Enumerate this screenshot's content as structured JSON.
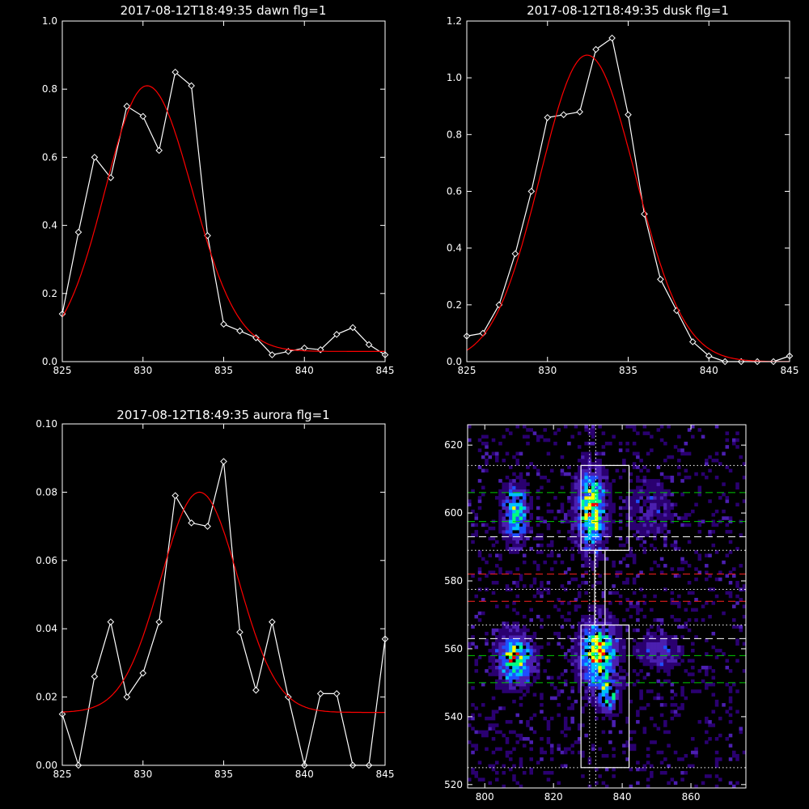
{
  "chart_data": [
    {
      "type": "line",
      "title": "2017-08-12T18:49:35 dawn flg=1",
      "xlim": [
        825,
        845
      ],
      "ylim": [
        0,
        1.0
      ],
      "xticks": [
        825,
        830,
        835,
        840,
        845
      ],
      "xtick_labels": [
        "825",
        "830",
        "835",
        "840",
        "845"
      ],
      "yticks": [
        0,
        0.2,
        0.4,
        0.6,
        0.8,
        1.0
      ],
      "ytick_labels": [
        "0.0",
        "0.2",
        "0.4",
        "0.6",
        "0.8",
        "1.0"
      ],
      "series": [
        {
          "style": "data",
          "color": "#ffffff",
          "marker": "diamond",
          "x": [
            825,
            826,
            827,
            828,
            829,
            830,
            831,
            832,
            833,
            834,
            835,
            836,
            837,
            838,
            839,
            840,
            841,
            842,
            843,
            844,
            845
          ],
          "y": [
            0.14,
            0.38,
            0.6,
            0.54,
            0.75,
            0.72,
            0.62,
            0.85,
            0.81,
            0.37,
            0.11,
            0.09,
            0.07,
            0.02,
            0.03,
            0.04,
            0.035,
            0.08,
            0.1,
            0.05,
            0.02
          ]
        },
        {
          "style": "fit",
          "color": "#ff0000",
          "fit": {
            "amplitude": 0.78,
            "center": 830.25,
            "sigma_left": 2.6,
            "sigma_right": 2.8,
            "baseline": 0.03
          }
        }
      ]
    },
    {
      "type": "line",
      "title": "2017-08-12T18:49:35 dusk flg=1",
      "xlim": [
        825,
        845
      ],
      "ylim": [
        0,
        1.2
      ],
      "xticks": [
        825,
        830,
        835,
        840,
        845
      ],
      "xtick_labels": [
        "825",
        "830",
        "835",
        "840",
        "845"
      ],
      "yticks": [
        0,
        0.2,
        0.4,
        0.6,
        0.8,
        1.0,
        1.2
      ],
      "ytick_labels": [
        "0.0",
        "0.2",
        "0.4",
        "0.6",
        "0.8",
        "1.0",
        "1.2"
      ],
      "series": [
        {
          "style": "data",
          "color": "#ffffff",
          "marker": "diamond",
          "x": [
            825,
            826,
            827,
            828,
            829,
            830,
            831,
            832,
            833,
            834,
            835,
            836,
            837,
            838,
            839,
            840,
            841,
            842,
            843,
            844,
            845
          ],
          "y": [
            0.09,
            0.1,
            0.2,
            0.38,
            0.6,
            0.86,
            0.87,
            0.88,
            1.1,
            1.14,
            0.87,
            0.52,
            0.29,
            0.18,
            0.07,
            0.02,
            0.0,
            0.0,
            0.0,
            0.0,
            0.02
          ]
        },
        {
          "style": "fit",
          "color": "#ff0000",
          "fit": {
            "amplitude": 1.08,
            "center": 832.45,
            "sigma_left": 2.9,
            "sigma_right": 3.0,
            "baseline": 0.0
          }
        }
      ]
    },
    {
      "type": "line",
      "title": "2017-08-12T18:49:35 aurora flg=1",
      "xlim": [
        825,
        845
      ],
      "ylim": [
        0,
        0.1
      ],
      "xticks": [
        825,
        830,
        835,
        840,
        845
      ],
      "xtick_labels": [
        "825",
        "830",
        "835",
        "840",
        "845"
      ],
      "yticks": [
        0,
        0.02,
        0.04,
        0.06,
        0.08,
        0.1
      ],
      "ytick_labels": [
        "0.00",
        "0.02",
        "0.04",
        "0.06",
        "0.08",
        "0.10"
      ],
      "series": [
        {
          "style": "data",
          "color": "#ffffff",
          "marker": "diamond",
          "x": [
            825,
            826,
            827,
            828,
            829,
            830,
            831,
            832,
            833,
            834,
            835,
            836,
            837,
            838,
            839,
            840,
            841,
            842,
            843,
            844,
            845
          ],
          "y": [
            0.015,
            0.0,
            0.026,
            0.042,
            0.02,
            0.027,
            0.042,
            0.079,
            0.071,
            0.07,
            0.089,
            0.039,
            0.022,
            0.042,
            0.02,
            0.0,
            0.021,
            0.021,
            0.0,
            0.0,
            0.037
          ]
        },
        {
          "style": "fit",
          "color": "#ff0000",
          "fit": {
            "amplitude": 0.0645,
            "center": 833.5,
            "sigma_left": 2.4,
            "sigma_right": 2.4,
            "baseline": 0.0155
          }
        }
      ]
    },
    {
      "type": "heatmap",
      "title": "",
      "xlim": [
        795,
        876
      ],
      "ylim": [
        519,
        626
      ],
      "xticks": [
        800,
        820,
        840,
        860
      ],
      "xtick_labels": [
        "800",
        "820",
        "840",
        "860"
      ],
      "yticks": [
        520,
        540,
        560,
        580,
        600,
        620
      ],
      "ytick_labels": [
        "520",
        "540",
        "560",
        "580",
        "600",
        "620"
      ],
      "colors": {
        "low": "#2a0070",
        "mid1": "#4b1fb0",
        "mid2": "#1f4fff",
        "mid3": "#00c0ff",
        "mid4": "#00ff80",
        "high": "#ffff00",
        "peak": "#ff0000"
      },
      "blobs": [
        {
          "x": 809,
          "y": 600,
          "sx": 2.2,
          "sy": 5.0,
          "amp": 0.7
        },
        {
          "x": 831,
          "y": 601,
          "sx": 2.6,
          "sy": 7.0,
          "amp": 0.95
        },
        {
          "x": 809,
          "y": 557,
          "sx": 3.2,
          "sy": 4.5,
          "amp": 0.85
        },
        {
          "x": 833,
          "y": 558,
          "sx": 3.2,
          "sy": 6.0,
          "amp": 1.0
        },
        {
          "x": 836,
          "y": 546,
          "sx": 2.0,
          "sy": 3.0,
          "amp": 0.55
        },
        {
          "x": 851,
          "y": 559,
          "sx": 3.5,
          "sy": 3.0,
          "amp": 0.3
        },
        {
          "x": 848,
          "y": 601,
          "sx": 4.0,
          "sy": 5.0,
          "amp": 0.22
        }
      ],
      "boxes": [
        {
          "x0": 828,
          "x1": 842,
          "y0": 589,
          "y1": 614
        },
        {
          "x0": 832,
          "x1": 835,
          "y0": 567,
          "y1": 589
        },
        {
          "x0": 828,
          "x1": 842,
          "y0": 525,
          "y1": 567
        }
      ],
      "hlines": [
        {
          "y": 614,
          "color": "#ffffff",
          "style": "dotted"
        },
        {
          "y": 606,
          "color": "#00cc00",
          "style": "dashed"
        },
        {
          "y": 597.5,
          "color": "#00cc00",
          "style": "dashed"
        },
        {
          "y": 593,
          "color": "#ffffff",
          "style": "dashed"
        },
        {
          "y": 589,
          "color": "#ffffff",
          "style": "dotted"
        },
        {
          "y": 582,
          "color": "#ff2020",
          "style": "dashed"
        },
        {
          "y": 577.5,
          "color": "#ffffff",
          "style": "dotted"
        },
        {
          "y": 574,
          "color": "#ff2020",
          "style": "dashed"
        },
        {
          "y": 567,
          "color": "#ffffff",
          "style": "dotted"
        },
        {
          "y": 563,
          "color": "#ffffff",
          "style": "dashed"
        },
        {
          "y": 558,
          "color": "#00cc00",
          "style": "dashed"
        },
        {
          "y": 550,
          "color": "#00cc00",
          "style": "dashed"
        },
        {
          "y": 525,
          "color": "#ffffff",
          "style": "dotted"
        }
      ],
      "vlines": [
        {
          "x": 830.5,
          "color": "#ffffff",
          "style": "dotted"
        },
        {
          "x": 832.3,
          "color": "#ffffff",
          "style": "dotted"
        }
      ]
    }
  ]
}
